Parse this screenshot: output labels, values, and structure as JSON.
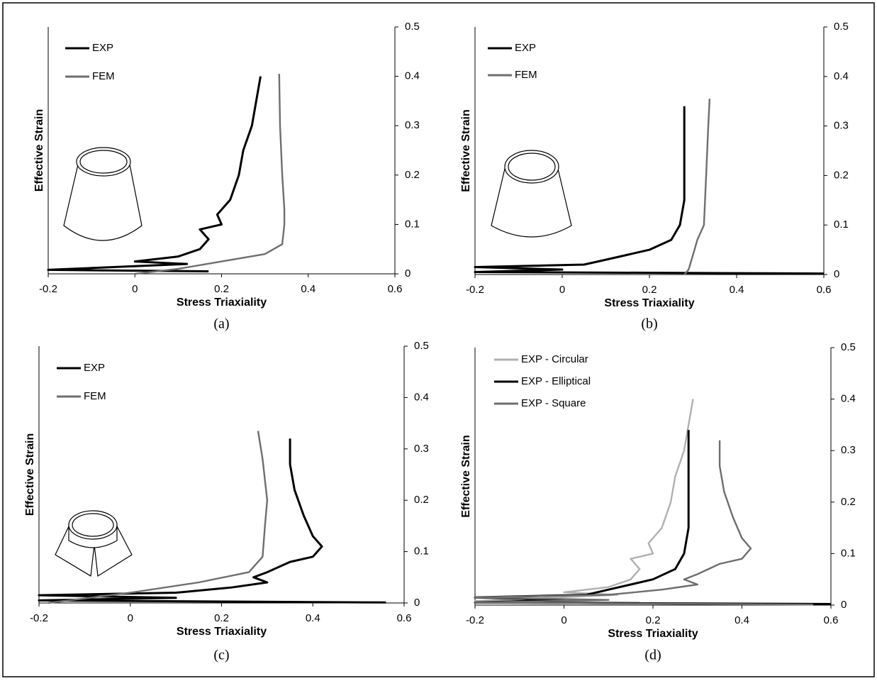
{
  "chart_data": [
    {
      "type": "line",
      "caption": "(a)",
      "x_label": "Stress Triaxiality",
      "y_label": "Effective Strain",
      "xlim": [
        -0.2,
        0.6
      ],
      "ylim": [
        0,
        0.5
      ],
      "xticks": [
        -0.2,
        0,
        0.2,
        0.4,
        0.6
      ],
      "yticks": [
        0,
        0.1,
        0.2,
        0.3,
        0.4,
        0.5
      ],
      "series": [
        {
          "name": "EXP",
          "color": "#000000",
          "x": [
            0.17,
            -0.2,
            0.12,
            0.0,
            0.1,
            0.15,
            0.17,
            0.15,
            0.2,
            0.19,
            0.22,
            0.24,
            0.25,
            0.27,
            0.28,
            0.29
          ],
          "values": [
            0.005,
            0.008,
            0.02,
            0.025,
            0.035,
            0.05,
            0.07,
            0.09,
            0.1,
            0.12,
            0.15,
            0.2,
            0.25,
            0.3,
            0.35,
            0.4
          ]
        },
        {
          "name": "FEM",
          "color": "#6e6e6e",
          "x": [
            0,
            0.1,
            0.2,
            0.3,
            0.34,
            0.345,
            0.345,
            0.34,
            0.335,
            0.333
          ],
          "values": [
            0,
            0.01,
            0.025,
            0.04,
            0.06,
            0.1,
            0.13,
            0.2,
            0.3,
            0.405
          ]
        }
      ]
    },
    {
      "type": "line",
      "caption": "(b)",
      "x_label": "Stress Triaxiality",
      "y_label": "Effective Strain",
      "xlim": [
        -0.2,
        0.6
      ],
      "ylim": [
        0,
        0.5
      ],
      "xticks": [
        -0.2,
        0,
        0.2,
        0.4,
        0.6
      ],
      "yticks": [
        0,
        0.1,
        0.2,
        0.3,
        0.4,
        0.5
      ],
      "series": [
        {
          "name": "EXP",
          "color": "#000000",
          "x": [
            0.6,
            -0.2,
            0.0,
            -0.2,
            0.05,
            0.1,
            0.15,
            0.2,
            0.25,
            0.27,
            0.28,
            0.28,
            0.28,
            0.28,
            0.28
          ],
          "values": [
            0.002,
            0.005,
            0.01,
            0.015,
            0.02,
            0.03,
            0.04,
            0.05,
            0.07,
            0.1,
            0.15,
            0.2,
            0.25,
            0.3,
            0.34
          ]
        },
        {
          "name": "FEM",
          "color": "#6e6e6e",
          "x": [
            0.28,
            0.29,
            0.3,
            0.31,
            0.325,
            0.33,
            0.335,
            0.338
          ],
          "values": [
            0,
            0.01,
            0.04,
            0.07,
            0.1,
            0.2,
            0.3,
            0.355
          ]
        }
      ]
    },
    {
      "type": "line",
      "caption": "(c)",
      "x_label": "Stress Triaxiality",
      "y_label": "Effective Strain",
      "xlim": [
        -0.2,
        0.6
      ],
      "ylim": [
        0,
        0.5
      ],
      "xticks": [
        -0.2,
        0,
        0.2,
        0.4,
        0.6
      ],
      "yticks": [
        0,
        0.1,
        0.2,
        0.3,
        0.4,
        0.5
      ],
      "series": [
        {
          "name": "EXP",
          "color": "#000000",
          "x": [
            0.56,
            -0.2,
            0.1,
            -0.2,
            0.1,
            0.22,
            0.3,
            0.27,
            0.3,
            0.35,
            0.4,
            0.42,
            0.4,
            0.38,
            0.36,
            0.35,
            0.35
          ],
          "values": [
            0.001,
            0.005,
            0.01,
            0.015,
            0.02,
            0.03,
            0.04,
            0.05,
            0.06,
            0.08,
            0.09,
            0.11,
            0.13,
            0.17,
            0.22,
            0.27,
            0.32
          ]
        },
        {
          "name": "FEM",
          "color": "#6e6e6e",
          "x": [
            -0.18,
            0,
            0.15,
            0.26,
            0.29,
            0.295,
            0.3,
            0.29,
            0.28
          ],
          "values": [
            0,
            0.02,
            0.04,
            0.06,
            0.09,
            0.15,
            0.2,
            0.28,
            0.335
          ]
        }
      ]
    },
    {
      "type": "line",
      "caption": "(d)",
      "x_label": "Stress Triaxiality",
      "y_label": "Effective Strain",
      "xlim": [
        -0.2,
        0.6
      ],
      "ylim": [
        0,
        0.5
      ],
      "xticks": [
        -0.2,
        0,
        0.2,
        0.4,
        0.6
      ],
      "yticks": [
        0,
        0.1,
        0.2,
        0.3,
        0.4,
        0.5
      ],
      "series": [
        {
          "name": "EXP - Circular",
          "color": "#b0b0b0",
          "x": [
            0.17,
            -0.2,
            0.12,
            0.0,
            0.1,
            0.15,
            0.17,
            0.15,
            0.2,
            0.19,
            0.22,
            0.24,
            0.25,
            0.27,
            0.28,
            0.29
          ],
          "values": [
            0.005,
            0.008,
            0.02,
            0.025,
            0.035,
            0.05,
            0.07,
            0.09,
            0.1,
            0.12,
            0.15,
            0.2,
            0.25,
            0.3,
            0.35,
            0.4
          ]
        },
        {
          "name": "EXP - Elliptical",
          "color": "#000000",
          "x": [
            0.6,
            -0.2,
            0.0,
            -0.2,
            0.05,
            0.1,
            0.15,
            0.2,
            0.25,
            0.27,
            0.28,
            0.28,
            0.28,
            0.28,
            0.28
          ],
          "values": [
            0.002,
            0.005,
            0.01,
            0.015,
            0.02,
            0.03,
            0.04,
            0.05,
            0.07,
            0.1,
            0.15,
            0.2,
            0.25,
            0.3,
            0.34
          ]
        },
        {
          "name": "EXP - Square",
          "color": "#6e6e6e",
          "x": [
            0.56,
            -0.2,
            0.1,
            -0.2,
            0.1,
            0.22,
            0.3,
            0.27,
            0.3,
            0.35,
            0.4,
            0.42,
            0.4,
            0.38,
            0.36,
            0.35,
            0.35
          ],
          "values": [
            0.001,
            0.005,
            0.01,
            0.015,
            0.02,
            0.03,
            0.04,
            0.05,
            0.06,
            0.08,
            0.09,
            0.11,
            0.13,
            0.17,
            0.22,
            0.27,
            0.32
          ]
        }
      ]
    }
  ]
}
